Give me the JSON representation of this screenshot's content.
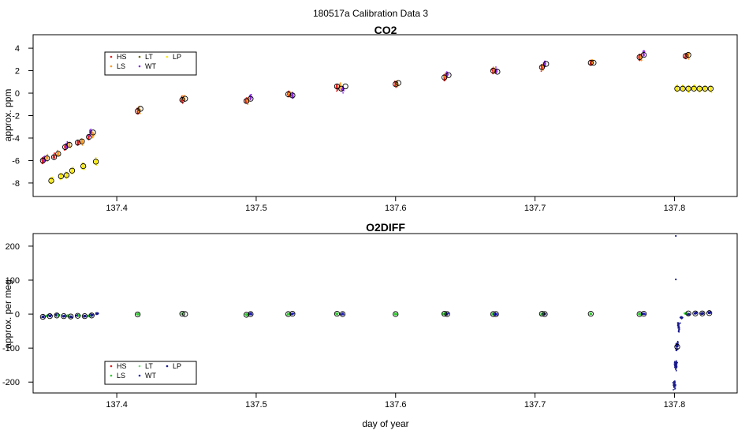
{
  "figure": {
    "suptitle": "180517a   Calibration Data 3",
    "xlabel": "day of year"
  },
  "chart_data": [
    {
      "type": "scatter",
      "title": "CO2",
      "ylabel": "approx. ppm",
      "xlim": [
        137.34,
        137.845
      ],
      "ylim": [
        -9.2,
        5.2
      ],
      "xticks": [
        137.4,
        137.5,
        137.6,
        137.7,
        137.8
      ],
      "yticks": [
        -8,
        -6,
        -4,
        -2,
        0,
        2,
        4
      ],
      "legend_position": "top-left",
      "legend": [
        {
          "name": "HS",
          "color": "#e02020"
        },
        {
          "name": "LT",
          "color": "#6a6a00"
        },
        {
          "name": "LP",
          "color": "#ffea00"
        },
        {
          "name": "LS",
          "color": "#ff9a1f"
        },
        {
          "name": "WT",
          "color": "#8a2be2"
        }
      ],
      "series": [
        {
          "name": "HS",
          "color": "#e02020",
          "points": [
            [
              137.347,
              -6.0
            ],
            [
              137.355,
              -5.6
            ],
            [
              137.363,
              -4.8
            ],
            [
              137.372,
              -4.4
            ],
            [
              137.38,
              -3.9
            ],
            [
              137.415,
              -1.6
            ],
            [
              137.447,
              -0.6
            ],
            [
              137.493,
              -0.7
            ],
            [
              137.523,
              -0.1
            ],
            [
              137.558,
              0.5
            ],
            [
              137.6,
              0.8
            ],
            [
              137.635,
              1.4
            ],
            [
              137.67,
              2.0
            ],
            [
              137.705,
              2.3
            ],
            [
              137.74,
              2.7
            ],
            [
              137.775,
              3.2
            ],
            [
              137.808,
              3.3
            ]
          ]
        },
        {
          "name": "LS",
          "color": "#ff9a1f",
          "points": [
            [
              137.35,
              -5.8
            ],
            [
              137.358,
              -5.4
            ],
            [
              137.366,
              -4.6
            ],
            [
              137.375,
              -4.3
            ],
            [
              137.383,
              -3.7
            ],
            [
              137.416,
              -1.5
            ],
            [
              137.448,
              -0.5
            ],
            [
              137.494,
              -0.6
            ],
            [
              137.524,
              -0.1
            ],
            [
              137.56,
              0.6
            ],
            [
              137.601,
              0.9
            ],
            [
              137.636,
              1.5
            ],
            [
              137.671,
              2.0
            ],
            [
              137.706,
              2.4
            ],
            [
              137.741,
              2.8
            ],
            [
              137.776,
              3.2
            ],
            [
              137.81,
              3.4
            ]
          ]
        },
        {
          "name": "WT",
          "color": "#8a2be2",
          "points": [
            [
              137.348,
              -5.9
            ],
            [
              137.364,
              -4.6
            ],
            [
              137.381,
              -3.5
            ],
            [
              137.496,
              -0.4
            ],
            [
              137.526,
              -0.2
            ],
            [
              137.562,
              0.4
            ],
            [
              137.637,
              1.7
            ],
            [
              137.672,
              2.0
            ],
            [
              137.707,
              2.6
            ],
            [
              137.778,
              3.5
            ]
          ]
        },
        {
          "name": "LP",
          "color": "#ffea00",
          "points": [
            [
              137.353,
              -7.8
            ],
            [
              137.36,
              -7.4
            ],
            [
              137.364,
              -7.3
            ],
            [
              137.368,
              -6.9
            ],
            [
              137.376,
              -6.5
            ],
            [
              137.385,
              -6.1
            ],
            [
              137.802,
              0.4
            ],
            [
              137.806,
              0.4
            ],
            [
              137.81,
              0.4
            ],
            [
              137.814,
              0.4
            ],
            [
              137.818,
              0.4
            ],
            [
              137.822,
              0.4
            ],
            [
              137.826,
              0.4
            ]
          ]
        }
      ],
      "means": [
        [
          137.347,
          -6.0
        ],
        [
          137.35,
          -5.8
        ],
        [
          137.355,
          -5.7
        ],
        [
          137.358,
          -5.4
        ],
        [
          137.363,
          -4.8
        ],
        [
          137.366,
          -4.6
        ],
        [
          137.372,
          -4.4
        ],
        [
          137.375,
          -4.3
        ],
        [
          137.38,
          -3.9
        ],
        [
          137.383,
          -3.5
        ],
        [
          137.353,
          -7.8
        ],
        [
          137.36,
          -7.4
        ],
        [
          137.364,
          -7.3
        ],
        [
          137.368,
          -6.9
        ],
        [
          137.376,
          -6.5
        ],
        [
          137.385,
          -6.1
        ],
        [
          137.415,
          -1.6
        ],
        [
          137.417,
          -1.4
        ],
        [
          137.447,
          -0.6
        ],
        [
          137.449,
          -0.5
        ],
        [
          137.493,
          -0.7
        ],
        [
          137.496,
          -0.5
        ],
        [
          137.523,
          -0.1
        ],
        [
          137.526,
          -0.2
        ],
        [
          137.558,
          0.6
        ],
        [
          137.561,
          0.4
        ],
        [
          137.564,
          0.6
        ],
        [
          137.6,
          0.8
        ],
        [
          137.602,
          0.9
        ],
        [
          137.635,
          1.4
        ],
        [
          137.638,
          1.6
        ],
        [
          137.67,
          2.0
        ],
        [
          137.673,
          1.9
        ],
        [
          137.705,
          2.3
        ],
        [
          137.708,
          2.6
        ],
        [
          137.74,
          2.7
        ],
        [
          137.742,
          2.7
        ],
        [
          137.775,
          3.2
        ],
        [
          137.778,
          3.4
        ],
        [
          137.808,
          3.3
        ],
        [
          137.81,
          3.4
        ],
        [
          137.802,
          0.4
        ],
        [
          137.806,
          0.4
        ],
        [
          137.81,
          0.4
        ],
        [
          137.814,
          0.4
        ],
        [
          137.818,
          0.4
        ],
        [
          137.822,
          0.4
        ],
        [
          137.826,
          0.4
        ]
      ]
    },
    {
      "type": "scatter",
      "title": "O2DIFF",
      "ylabel": "approx. per meg",
      "xlabel": "day of year",
      "xlim": [
        137.34,
        137.845
      ],
      "ylim": [
        -232,
        237
      ],
      "xticks": [
        137.4,
        137.5,
        137.6,
        137.7,
        137.8
      ],
      "yticks": [
        -200,
        -100,
        0,
        100,
        200
      ],
      "legend_position": "bottom-left",
      "legend": [
        {
          "name": "HS",
          "color": "#e02020"
        },
        {
          "name": "LT",
          "color": "#6fe06f"
        },
        {
          "name": "LP",
          "color": "#1a1a8c"
        },
        {
          "name": "LS",
          "color": "#32cd32"
        },
        {
          "name": "WT",
          "color": "#2020c0"
        }
      ],
      "series": [
        {
          "name": "LP",
          "color": "#1a1a8c",
          "points": [
            [
              137.347,
              -8
            ],
            [
              137.352,
              -5
            ],
            [
              137.357,
              -3
            ],
            [
              137.362,
              -6
            ],
            [
              137.367,
              -8
            ],
            [
              137.372,
              -4
            ],
            [
              137.377,
              -6
            ],
            [
              137.382,
              -3
            ],
            [
              137.386,
              2
            ],
            [
              137.8,
              -210
            ],
            [
              137.801,
              -150
            ],
            [
              137.802,
              -95
            ],
            [
              137.803,
              -40
            ],
            [
              137.805,
              -10
            ],
            [
              137.81,
              0
            ],
            [
              137.815,
              3
            ],
            [
              137.82,
              2
            ],
            [
              137.825,
              4
            ]
          ]
        },
        {
          "name": "LS",
          "color": "#32cd32",
          "points": [
            [
              137.35,
              -5
            ],
            [
              137.358,
              -4
            ],
            [
              137.365,
              -5
            ],
            [
              137.373,
              -4
            ],
            [
              137.38,
              -5
            ],
            [
              137.415,
              -1
            ],
            [
              137.447,
              1
            ],
            [
              137.493,
              -2
            ],
            [
              137.523,
              0
            ],
            [
              137.558,
              1
            ],
            [
              137.6,
              0
            ],
            [
              137.635,
              1
            ],
            [
              137.67,
              0
            ],
            [
              137.705,
              1
            ],
            [
              137.74,
              1
            ],
            [
              137.775,
              0
            ],
            [
              137.808,
              2
            ]
          ]
        },
        {
          "name": "WT",
          "color": "#2020c0",
          "points": [
            [
              137.496,
              0
            ],
            [
              137.526,
              1
            ],
            [
              137.562,
              0
            ],
            [
              137.637,
              0
            ],
            [
              137.672,
              0
            ],
            [
              137.707,
              0
            ],
            [
              137.778,
              1
            ]
          ]
        }
      ],
      "means": [
        [
          137.347,
          -8
        ],
        [
          137.352,
          -6
        ],
        [
          137.357,
          -4
        ],
        [
          137.362,
          -6
        ],
        [
          137.367,
          -7
        ],
        [
          137.372,
          -5
        ],
        [
          137.377,
          -6
        ],
        [
          137.382,
          -4
        ],
        [
          137.415,
          -1
        ],
        [
          137.447,
          1
        ],
        [
          137.449,
          0
        ],
        [
          137.493,
          -2
        ],
        [
          137.496,
          0
        ],
        [
          137.523,
          0
        ],
        [
          137.526,
          1
        ],
        [
          137.558,
          1
        ],
        [
          137.562,
          0
        ],
        [
          137.6,
          0
        ],
        [
          137.635,
          1
        ],
        [
          137.637,
          0
        ],
        [
          137.67,
          0
        ],
        [
          137.672,
          0
        ],
        [
          137.705,
          1
        ],
        [
          137.707,
          0
        ],
        [
          137.74,
          1
        ],
        [
          137.775,
          0
        ],
        [
          137.778,
          1
        ],
        [
          137.802,
          -96
        ],
        [
          137.81,
          2
        ],
        [
          137.815,
          2
        ],
        [
          137.82,
          2
        ],
        [
          137.825,
          3
        ]
      ],
      "outliers": [
        [
          137.801,
          230
        ],
        [
          137.801,
          102
        ]
      ]
    }
  ]
}
